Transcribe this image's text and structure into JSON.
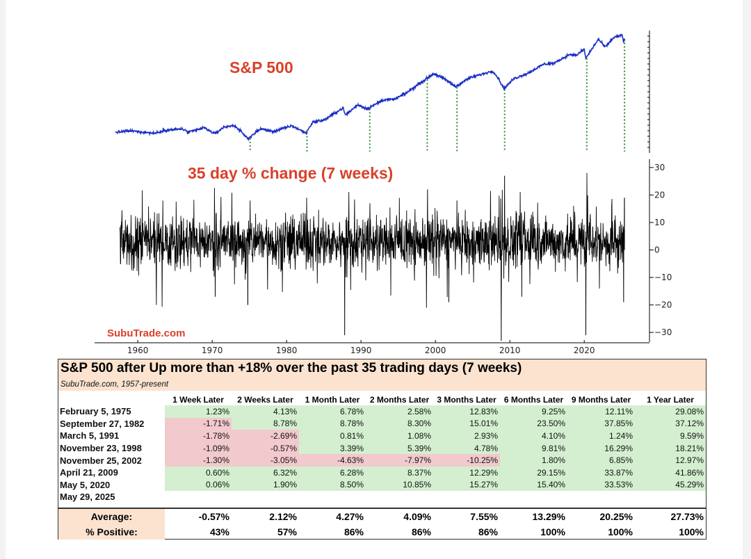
{
  "chart_data": [
    {
      "type": "line",
      "title": "S&P 500",
      "x_range": [
        1957,
        2025.4
      ],
      "marker_years": [
        1975.1,
        1982.74,
        1991.18,
        1998.9,
        2002.9,
        2009.3,
        2020.34,
        2025.41
      ],
      "marker_style": "dotted green vertical lines",
      "color": "#1b2fc4",
      "series": [
        {
          "values": [
            [
              1957.0,
              7.0
            ],
            [
              1959.0,
              9.3
            ],
            [
              1962.3,
              5.6
            ],
            [
              1963.5,
              10.0
            ],
            [
              1966.0,
              12.2
            ],
            [
              1966.8,
              6.8
            ],
            [
              1968.9,
              14.0
            ],
            [
              1970.4,
              4.8
            ],
            [
              1971.5,
              14.6
            ],
            [
              1973.0,
              17.5
            ],
            [
              1974.8,
              -2.5
            ],
            [
              1976.5,
              12.5
            ],
            [
              1978.2,
              8.0
            ],
            [
              1980.7,
              17.0
            ],
            [
              1982.6,
              6.0
            ],
            [
              1983.5,
              22.5
            ],
            [
              1985.0,
              25.5
            ],
            [
              1987.6,
              44.0
            ],
            [
              1987.9,
              33.0
            ],
            [
              1989.6,
              49.0
            ],
            [
              1990.8,
              42.5
            ],
            [
              1993.0,
              56.0
            ],
            [
              1994.5,
              57.0
            ],
            [
              1996.0,
              66.0
            ],
            [
              1998.0,
              82.0
            ],
            [
              1999.8,
              96.0
            ],
            [
              2001.5,
              86.0
            ],
            [
              2002.7,
              76.0
            ],
            [
              2004.5,
              89.0
            ],
            [
              2007.7,
              100.0
            ],
            [
              2008.5,
              88.0
            ],
            [
              2009.2,
              73.0
            ],
            [
              2010.5,
              88.0
            ],
            [
              2012.5,
              97.0
            ],
            [
              2014.5,
              110.0
            ],
            [
              2016.0,
              112.0
            ],
            [
              2018.0,
              125.0
            ],
            [
              2019.0,
              124.0
            ],
            [
              2020.0,
              133.0
            ],
            [
              2020.2,
              119.0
            ],
            [
              2021.9,
              148.0
            ],
            [
              2022.8,
              136.0
            ],
            [
              2024.0,
              151.0
            ],
            [
              2025.1,
              154.0
            ],
            [
              2025.3,
              143.0
            ],
            [
              2025.41,
              150.0
            ]
          ]
        }
      ]
    },
    {
      "type": "line",
      "title": "35 day % change (7 weeks)",
      "x_range": [
        1957,
        2025.4
      ],
      "y_range": [
        -33,
        32
      ],
      "y_ticks": [
        30,
        20,
        10,
        0,
        -10,
        -20,
        -30
      ],
      "x_ticks": [
        1960,
        1970,
        1980,
        1990,
        2000,
        2010,
        2020
      ],
      "color": "#000000",
      "spikes": [
        [
          1962.5,
          -20
        ],
        [
          1970.4,
          -17
        ],
        [
          1974.8,
          -20
        ],
        [
          1975.1,
          18
        ],
        [
          1982.7,
          19
        ],
        [
          1987.8,
          -31
        ],
        [
          1991.2,
          17
        ],
        [
          1998.8,
          -21
        ],
        [
          1998.95,
          22
        ],
        [
          2001.8,
          -19
        ],
        [
          2002.9,
          18
        ],
        [
          2008.85,
          -33
        ],
        [
          2009.3,
          27
        ],
        [
          2011.6,
          -17
        ],
        [
          2020.2,
          -31
        ],
        [
          2020.35,
          28
        ],
        [
          2025.3,
          -19
        ],
        [
          2025.41,
          19
        ]
      ]
    },
    {
      "type": "table",
      "title": "S&P 500 after Up more than +18% over the past 35 trading days (7 weeks)",
      "subtitle": "SubuTrade.com, 1957-present",
      "columns": [
        "1 Week Later",
        "2 Weeks Later",
        "1 Month Later",
        "2 Months Later",
        "3 Months Later",
        "6 Months Later",
        "9 Months Later",
        "1 Year Later"
      ],
      "rows": [
        {
          "date": "February 5, 1975",
          "values": [
            "1.23%",
            "4.13%",
            "6.78%",
            "2.58%",
            "12.83%",
            "9.25%",
            "12.11%",
            "29.08%"
          ]
        },
        {
          "date": "September 27, 1982",
          "values": [
            "-1.71%",
            "8.78%",
            "8.78%",
            "8.30%",
            "15.01%",
            "23.50%",
            "37.85%",
            "37.12%"
          ]
        },
        {
          "date": "March 5, 1991",
          "values": [
            "-1.78%",
            "-2.69%",
            "0.81%",
            "1.08%",
            "2.93%",
            "4.10%",
            "1.24%",
            "9.59%"
          ]
        },
        {
          "date": "November 23, 1998",
          "values": [
            "-1.09%",
            "-0.57%",
            "3.39%",
            "5.39%",
            "4.78%",
            "9.81%",
            "16.29%",
            "18.21%"
          ]
        },
        {
          "date": "November 25, 2002",
          "values": [
            "-1.30%",
            "-3.05%",
            "-4.63%",
            "-7.97%",
            "-10.25%",
            "1.80%",
            "6.85%",
            "12.97%"
          ]
        },
        {
          "date": "April 21, 2009",
          "values": [
            "0.60%",
            "6.32%",
            "6.28%",
            "8.37%",
            "12.29%",
            "29.15%",
            "33.87%",
            "41.86%"
          ]
        },
        {
          "date": "May 5, 2020",
          "values": [
            "0.06%",
            "1.90%",
            "8.50%",
            "10.85%",
            "15.27%",
            "15.40%",
            "33.53%",
            "45.29%"
          ]
        },
        {
          "date": "May 29, 2025",
          "values": [
            "",
            "",
            "",
            "",
            "",
            "",
            "",
            ""
          ]
        }
      ],
      "average_label": "Average:",
      "average": [
        "-0.57%",
        "2.12%",
        "4.27%",
        "4.09%",
        "7.55%",
        "13.29%",
        "20.25%",
        "27.73%"
      ],
      "positive_label": "% Positive:",
      "positive": [
        "43%",
        "57%",
        "86%",
        "86%",
        "86%",
        "100%",
        "100%",
        "100%"
      ]
    }
  ],
  "labels": {
    "top_title": "S&P 500",
    "bottom_title": "35 day % change (7 weeks)",
    "watermark": "SubuTrade.com"
  },
  "colors": {
    "title_red": "#d9412b",
    "price_line": "#1b2fc4",
    "marker_green": "#2f8a2f",
    "cell_positive": "#d4efd0",
    "cell_negative": "#f2c9cd",
    "header_band": "#fbe3d0"
  }
}
